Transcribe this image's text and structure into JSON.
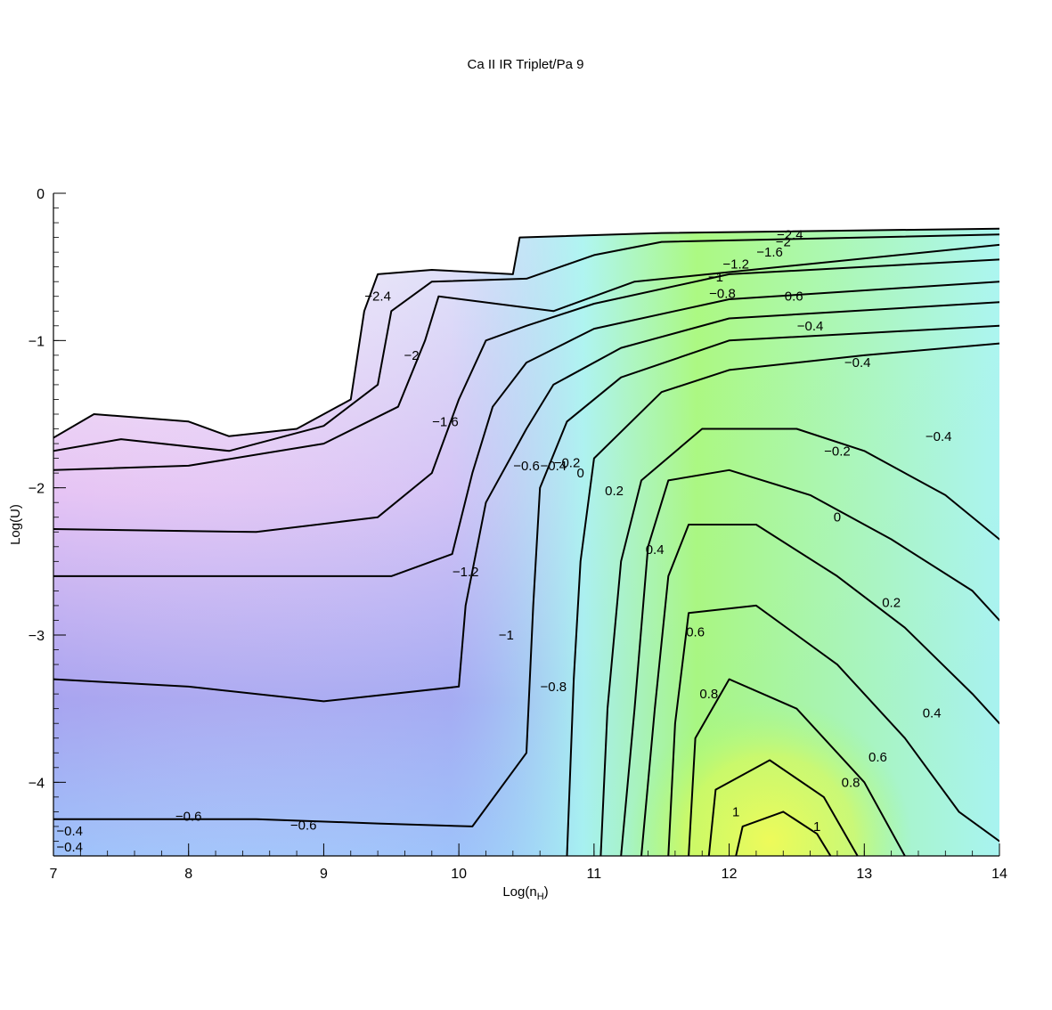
{
  "chart_data": {
    "type": "contour",
    "title": "Ca II IR Triplet/Pa 9",
    "xlabel_main": "Log(n",
    "xlabel_sub": "H",
    "xlabel_close": ")",
    "ylabel": "Log(U)",
    "xlim": [
      7,
      14
    ],
    "ylim": [
      -4.5,
      0
    ],
    "xticks": [
      7,
      8,
      9,
      10,
      11,
      12,
      13,
      14
    ],
    "xtick_labels": [
      "7",
      "8",
      "9",
      "10",
      "11",
      "12",
      "13",
      "14"
    ],
    "yticks": [
      0,
      -1,
      -2,
      -3,
      -4
    ],
    "ytick_labels": [
      "0",
      "−1",
      "−2",
      "−3",
      "−4"
    ],
    "colors": {
      "low": "#f7f0f8",
      "purple": "#e6c4f4",
      "violet": "#a8a4f0",
      "blue": "#9ec2fa",
      "cyan": "#a8f6f0",
      "green": "#a8fa7c",
      "yellow": "#eefa5a"
    },
    "contours": [
      {
        "level": -2.4,
        "points": [
          [
            7.0,
            -1.66
          ],
          [
            7.3,
            -1.5
          ],
          [
            8.0,
            -1.55
          ],
          [
            8.3,
            -1.65
          ],
          [
            8.8,
            -1.6
          ],
          [
            9.2,
            -1.4
          ],
          [
            9.3,
            -0.8
          ],
          [
            9.4,
            -0.55
          ],
          [
            9.8,
            -0.52
          ],
          [
            10.4,
            -0.55
          ],
          [
            10.45,
            -0.3
          ],
          [
            11.5,
            -0.27
          ],
          [
            14.0,
            -0.24
          ]
        ]
      },
      {
        "level": -2,
        "points": [
          [
            7.0,
            -1.75
          ],
          [
            7.5,
            -1.67
          ],
          [
            8.3,
            -1.75
          ],
          [
            9.0,
            -1.58
          ],
          [
            9.4,
            -1.3
          ],
          [
            9.5,
            -0.8
          ],
          [
            9.8,
            -0.6
          ],
          [
            10.5,
            -0.58
          ],
          [
            11.0,
            -0.42
          ],
          [
            11.5,
            -0.33
          ],
          [
            14.0,
            -0.28
          ]
        ]
      },
      {
        "level": -1.6,
        "points": [
          [
            7.0,
            -1.88
          ],
          [
            8.0,
            -1.85
          ],
          [
            9.0,
            -1.7
          ],
          [
            9.55,
            -1.45
          ],
          [
            9.75,
            -1.0
          ],
          [
            9.85,
            -0.7
          ],
          [
            10.7,
            -0.8
          ],
          [
            11.3,
            -0.6
          ],
          [
            14.0,
            -0.35
          ]
        ]
      },
      {
        "level": -1.2,
        "points": [
          [
            7.0,
            -2.28
          ],
          [
            8.5,
            -2.3
          ],
          [
            9.4,
            -2.2
          ],
          [
            9.8,
            -1.9
          ],
          [
            10.0,
            -1.4
          ],
          [
            10.2,
            -1.0
          ],
          [
            10.5,
            -0.9
          ],
          [
            11.0,
            -0.75
          ],
          [
            12.0,
            -0.55
          ],
          [
            14.0,
            -0.45
          ]
        ]
      },
      {
        "level": -1,
        "points": [
          [
            7.0,
            -2.6
          ],
          [
            8.5,
            -2.6
          ],
          [
            9.5,
            -2.6
          ],
          [
            9.95,
            -2.45
          ],
          [
            10.1,
            -1.9
          ],
          [
            10.25,
            -1.45
          ],
          [
            10.5,
            -1.15
          ],
          [
            11.0,
            -0.92
          ],
          [
            12.0,
            -0.72
          ],
          [
            14.0,
            -0.6
          ]
        ]
      },
      {
        "level": -0.8,
        "points": [
          [
            7.0,
            -3.3
          ],
          [
            8.0,
            -3.35
          ],
          [
            9.0,
            -3.45
          ],
          [
            10.0,
            -3.35
          ],
          [
            10.05,
            -2.8
          ],
          [
            10.2,
            -2.1
          ],
          [
            10.5,
            -1.6
          ],
          [
            10.7,
            -1.3
          ],
          [
            11.2,
            -1.05
          ],
          [
            12.0,
            -0.85
          ],
          [
            14.0,
            -0.74
          ]
        ]
      },
      {
        "level": -0.6,
        "points": [
          [
            7.0,
            -4.25
          ],
          [
            8.5,
            -4.25
          ],
          [
            9.4,
            -4.28
          ],
          [
            10.1,
            -4.3
          ],
          [
            10.5,
            -3.8
          ],
          [
            10.55,
            -2.8
          ],
          [
            10.6,
            -2.0
          ],
          [
            10.8,
            -1.55
          ],
          [
            11.2,
            -1.25
          ],
          [
            12.0,
            -1.0
          ],
          [
            14.0,
            -0.9
          ]
        ]
      },
      {
        "level": -0.4,
        "points": [
          [
            10.8,
            -4.5
          ],
          [
            10.85,
            -3.3
          ],
          [
            10.9,
            -2.5
          ],
          [
            11.0,
            -1.8
          ],
          [
            11.5,
            -1.35
          ],
          [
            12.0,
            -1.2
          ],
          [
            13.0,
            -1.1
          ],
          [
            14.0,
            -1.02
          ]
        ]
      },
      {
        "level": -0.2,
        "points": [
          [
            11.05,
            -4.5
          ],
          [
            11.1,
            -3.5
          ],
          [
            11.2,
            -2.5
          ],
          [
            11.35,
            -1.95
          ],
          [
            11.8,
            -1.6
          ],
          [
            12.5,
            -1.6
          ],
          [
            13.0,
            -1.75
          ],
          [
            13.6,
            -2.05
          ],
          [
            14.0,
            -2.35
          ]
        ]
      },
      {
        "level": 0,
        "points": [
          [
            11.2,
            -4.5
          ],
          [
            11.3,
            -3.5
          ],
          [
            11.4,
            -2.4
          ],
          [
            11.55,
            -1.95
          ],
          [
            12.0,
            -1.88
          ],
          [
            12.6,
            -2.05
          ],
          [
            13.2,
            -2.35
          ],
          [
            13.8,
            -2.7
          ],
          [
            14.0,
            -2.9
          ]
        ]
      },
      {
        "level": 0.2,
        "points": [
          [
            11.35,
            -4.5
          ],
          [
            11.45,
            -3.5
          ],
          [
            11.55,
            -2.6
          ],
          [
            11.7,
            -2.25
          ],
          [
            12.2,
            -2.25
          ],
          [
            12.8,
            -2.6
          ],
          [
            13.3,
            -2.95
          ],
          [
            13.8,
            -3.4
          ],
          [
            14.0,
            -3.6
          ]
        ]
      },
      {
        "level": 0.4,
        "points": [
          [
            11.55,
            -4.5
          ],
          [
            11.6,
            -3.6
          ],
          [
            11.7,
            -2.85
          ],
          [
            12.2,
            -2.8
          ],
          [
            12.8,
            -3.2
          ],
          [
            13.3,
            -3.7
          ],
          [
            13.7,
            -4.2
          ],
          [
            14.0,
            -4.4
          ]
        ]
      },
      {
        "level": 0.6,
        "points": [
          [
            11.7,
            -4.5
          ],
          [
            11.75,
            -3.7
          ],
          [
            12.0,
            -3.3
          ],
          [
            12.5,
            -3.5
          ],
          [
            13.0,
            -4.0
          ],
          [
            13.3,
            -4.5
          ]
        ]
      },
      {
        "level": 0.8,
        "points": [
          [
            11.85,
            -4.5
          ],
          [
            11.9,
            -4.05
          ],
          [
            12.3,
            -3.85
          ],
          [
            12.7,
            -4.1
          ],
          [
            12.95,
            -4.5
          ]
        ]
      },
      {
        "level": 1,
        "points": [
          [
            12.05,
            -4.5
          ],
          [
            12.1,
            -4.3
          ],
          [
            12.4,
            -4.2
          ],
          [
            12.65,
            -4.35
          ],
          [
            12.75,
            -4.5
          ]
        ]
      }
    ],
    "contour_labels": [
      {
        "text": "−2.4",
        "x": 9.4,
        "y": -0.7
      },
      {
        "text": "−2",
        "x": 9.65,
        "y": -1.1
      },
      {
        "text": "−1.6",
        "x": 9.9,
        "y": -1.55
      },
      {
        "text": "−1.2",
        "x": 10.05,
        "y": -2.57
      },
      {
        "text": "−1",
        "x": 10.35,
        "y": -3.0
      },
      {
        "text": "−0.8",
        "x": 10.7,
        "y": -3.35
      },
      {
        "text": "−0.6",
        "x": 10.5,
        "y": -1.85
      },
      {
        "text": "−0.4",
        "x": 10.7,
        "y": -1.85
      },
      {
        "text": "−0.2",
        "x": 10.8,
        "y": -1.83
      },
      {
        "text": "0",
        "x": 10.9,
        "y": -1.9
      },
      {
        "text": "0.2",
        "x": 11.15,
        "y": -2.02
      },
      {
        "text": "0.4",
        "x": 11.45,
        "y": -2.42
      },
      {
        "text": "0.6",
        "x": 11.75,
        "y": -2.98
      },
      {
        "text": "0.8",
        "x": 11.85,
        "y": -3.4
      },
      {
        "text": "1",
        "x": 12.05,
        "y": -4.2
      },
      {
        "text": "1",
        "x": 12.65,
        "y": -4.3
      },
      {
        "text": "0.8",
        "x": 12.9,
        "y": -4.0
      },
      {
        "text": "0.6",
        "x": 13.1,
        "y": -3.83
      },
      {
        "text": "0.4",
        "x": 13.5,
        "y": -3.53
      },
      {
        "text": "0.2",
        "x": 13.2,
        "y": -2.78
      },
      {
        "text": "0",
        "x": 12.8,
        "y": -2.2
      },
      {
        "text": "−0.2",
        "x": 12.8,
        "y": -1.75
      },
      {
        "text": "−0.4",
        "x": 13.55,
        "y": -1.65
      },
      {
        "text": "−0.4",
        "x": 12.95,
        "y": -1.15
      },
      {
        "text": "−0.4",
        "x": 12.6,
        "y": -0.9
      },
      {
        "text": "−0.6",
        "x": 12.45,
        "y": -0.7
      },
      {
        "text": "−0.8",
        "x": 11.95,
        "y": -0.68
      },
      {
        "text": "−1",
        "x": 11.9,
        "y": -0.57
      },
      {
        "text": "−1.2",
        "x": 12.05,
        "y": -0.48
      },
      {
        "text": "−1.6",
        "x": 12.3,
        "y": -0.4
      },
      {
        "text": "−2",
        "x": 12.4,
        "y": -0.33
      },
      {
        "text": "−2.4",
        "x": 12.45,
        "y": -0.28
      },
      {
        "text": "−0.6",
        "x": 8.0,
        "y": -4.23
      },
      {
        "text": "−0.6",
        "x": 8.85,
        "y": -4.29
      },
      {
        "text": "−0.4",
        "x": 7.12,
        "y": -4.33
      },
      {
        "text": "−0.4",
        "x": 7.12,
        "y": -4.44
      }
    ]
  }
}
